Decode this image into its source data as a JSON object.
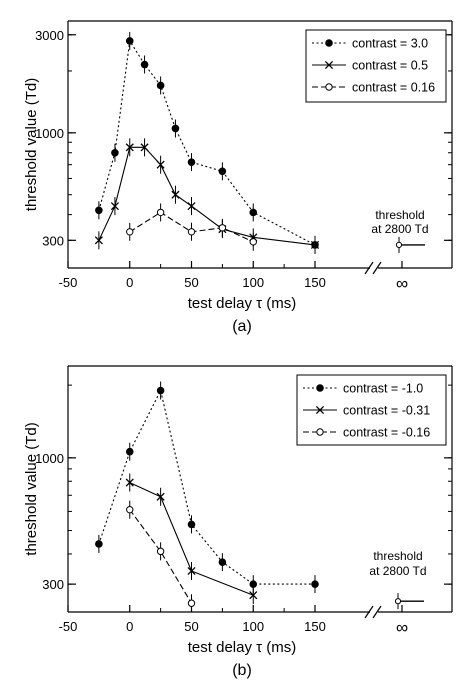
{
  "chart_data": [
    {
      "type": "line",
      "caption": "(a)",
      "xlabel": "test delay  τ  (ms)",
      "ylabel": "threshold value  (Td)",
      "y_scale": "log",
      "xlim": [
        -50,
        175
      ],
      "ylim": [
        220,
        3500
      ],
      "x_ticks": [
        -50,
        0,
        50,
        100,
        150
      ],
      "x_tick_labels": [
        "-50",
        "0",
        "50",
        "100",
        "150"
      ],
      "infinity_label": "∞",
      "y_ticks": [
        300,
        1000,
        3000
      ],
      "y_tick_labels": [
        "300",
        "1000",
        "3000"
      ],
      "legend_position": "top-right",
      "series": [
        {
          "name": "contrast = 3.0",
          "marker": "filled-circle",
          "line": "dotted",
          "x": [
            -25,
            -12,
            0,
            12,
            25,
            37,
            50,
            75,
            100,
            150
          ],
          "y": [
            420,
            800,
            2800,
            2150,
            1700,
            1050,
            720,
            650,
            410,
            285
          ]
        },
        {
          "name": "contrast = 0.5",
          "marker": "cross",
          "line": "solid",
          "x": [
            -25,
            -12,
            0,
            12,
            25,
            37,
            50,
            75,
            100,
            150
          ],
          "y": [
            300,
            440,
            850,
            850,
            700,
            500,
            440,
            340,
            310,
            285
          ]
        },
        {
          "name": "contrast = 0.16",
          "marker": "open-circle",
          "line": "dashed",
          "x": [
            0,
            25,
            50,
            75,
            100
          ],
          "y": [
            330,
            410,
            330,
            345,
            295
          ]
        }
      ],
      "threshold_label": [
        "threshold",
        "at 2800 Td"
      ],
      "threshold_value": 285
    },
    {
      "type": "line",
      "caption": "(b)",
      "xlabel": "test delay  τ  (ms)",
      "ylabel": "threshold value  (Td)",
      "y_scale": "log",
      "xlim": [
        -50,
        175
      ],
      "ylim": [
        230,
        2400
      ],
      "x_ticks": [
        -50,
        0,
        50,
        100,
        150
      ],
      "x_tick_labels": [
        "-50",
        "0",
        "50",
        "100",
        "150"
      ],
      "infinity_label": "∞",
      "y_ticks": [
        300,
        1000
      ],
      "y_tick_labels": [
        "300",
        "1000"
      ],
      "legend_position": "top-right",
      "series": [
        {
          "name": "contrast = -1.0",
          "marker": "filled-circle",
          "line": "dotted",
          "x": [
            -25,
            0,
            25,
            50,
            75,
            100,
            150
          ],
          "y": [
            440,
            1060,
            1900,
            530,
            370,
            300,
            300
          ]
        },
        {
          "name": "contrast = -0.31",
          "marker": "cross",
          "line": "solid",
          "x": [
            0,
            25,
            50,
            100
          ],
          "y": [
            790,
            690,
            340,
            270
          ]
        },
        {
          "name": "contrast = -0.16",
          "marker": "open-circle",
          "line": "dashed",
          "x": [
            0,
            25,
            50
          ],
          "y": [
            610,
            410,
            250
          ]
        }
      ],
      "threshold_label": [
        "threshold",
        "at 2800 Td"
      ],
      "threshold_value": 255
    }
  ]
}
